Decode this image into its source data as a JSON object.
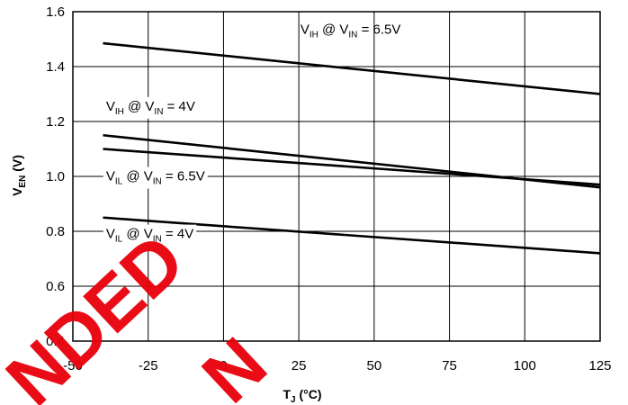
{
  "chart_data": {
    "type": "line",
    "x": [
      -40,
      125
    ],
    "xlim": [
      -50,
      125
    ],
    "ylim": [
      0.4,
      1.6
    ],
    "x_ticks": [
      "-50",
      "-25",
      "0",
      "25",
      "50",
      "75",
      "100",
      "125"
    ],
    "y_ticks": [
      "0.4",
      "0.6",
      "0.8",
      "1.0",
      "1.2",
      "1.4",
      "1.6"
    ],
    "x_title": {
      "main": "T",
      "sub": "J",
      "rest": " (°C)"
    },
    "y_title": {
      "main": "V",
      "sub": "EN",
      "rest": " (V)"
    },
    "grid": true,
    "series": [
      {
        "name": "V_IH @ V_IN = 6.5V",
        "values": [
          1.485,
          1.3
        ]
      },
      {
        "name": "V_IH @ V_IN = 4V",
        "values": [
          1.15,
          0.96
        ]
      },
      {
        "name": "V_IL @ V_IN = 6.5V",
        "values": [
          1.1,
          0.97
        ]
      },
      {
        "name": "V_IL @ V_IN = 4V",
        "values": [
          0.85,
          0.72
        ]
      }
    ],
    "annotations": [
      {
        "v1": "V",
        "s1": "IH",
        "mid": " @ V",
        "s2": "IN",
        "tail": " = 6.5V",
        "x": 25.5,
        "y": 1.52,
        "boxed": false
      },
      {
        "v1": "V",
        "s1": "IH",
        "mid": " @ V",
        "s2": "IN",
        "tail": " = 4V",
        "x": -39,
        "y": 1.24,
        "boxed": true
      },
      {
        "v1": "V",
        "s1": "IL",
        "mid": " @ V",
        "s2": "IN",
        "tail": " = 6.5V",
        "x": -39,
        "y": 0.985,
        "boxed": true
      },
      {
        "v1": "V",
        "s1": "IL",
        "mid": " @ V",
        "s2": "IN",
        "tail": " = 4V",
        "x": -39,
        "y": 0.775,
        "boxed": true
      }
    ],
    "line_color": "#000000",
    "grid_color": "#000000"
  },
  "watermark": {
    "word1": "NDED",
    "word2": "N",
    "color": "#e8000a"
  }
}
